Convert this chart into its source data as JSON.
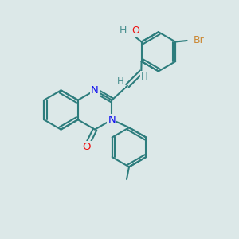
{
  "bg_color": "#dce8e8",
  "bond_color": "#2d7d7d",
  "bond_width": 1.5,
  "N_color": "#1010ee",
  "O_color": "#ee1010",
  "Br_color": "#cc8833",
  "H_color": "#4a9090",
  "label_fontsize": 8.5,
  "figsize": [
    3.0,
    3.0
  ],
  "dpi": 100,
  "xlim": [
    0,
    10
  ],
  "ylim": [
    0,
    10
  ]
}
